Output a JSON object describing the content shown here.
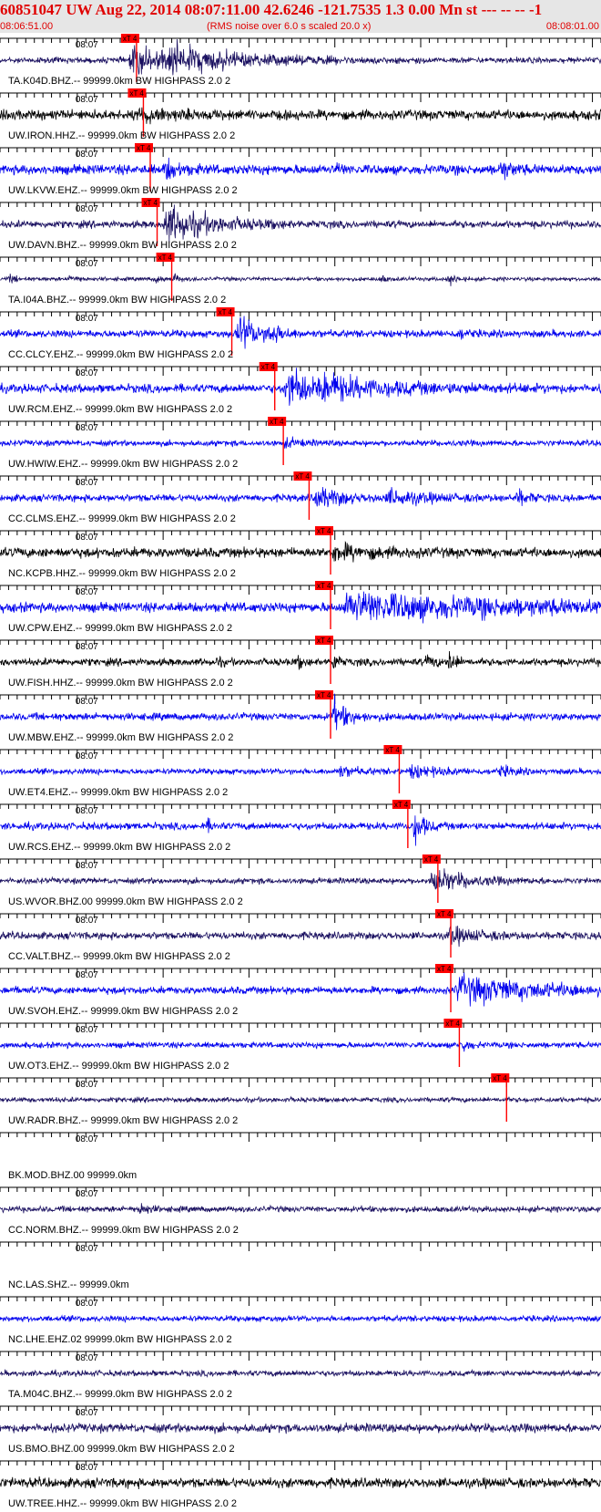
{
  "header": {
    "title": "60851047 UW Aug 22, 2014 08:07:11.00   42.6246 -121.7535  1.3 0.00 Mn st --- -- --  -1",
    "start_time": "08:06:51.00",
    "note": "(RMS noise over 6.0 s scaled 20.0 x)",
    "end_time": "08:08:01.00"
  },
  "chart_data": {
    "type": "line",
    "title": "60851047 UW Aug 22, 2014 08:07:11.00   42.6246 -121.7535  1.3 0.00 Mn st --- -- --  -1",
    "time_start": "08:06:51.00",
    "time_end": "08:08:01.00",
    "tick_label": "08:07",
    "pick_label": "xT 4",
    "colors": {
      "trace_blue": "#0000ee",
      "trace_navy": "#1a1060",
      "trace_black": "#000000",
      "pick": "#ff0000",
      "header_text": "#e00000",
      "header_bg": "#e6e6e6"
    },
    "series": [
      {
        "name": "TA.K04D.BHZ.-- 99999.0km BW  HIGHPASS  2.0  2",
        "color": "navy",
        "noise": 0.12,
        "pick_s": 15.9,
        "events": [
          [
            15.0,
            14.0,
            0.55,
            9.0
          ],
          [
            19.5,
            9.0,
            0.35,
            6.0
          ]
        ]
      },
      {
        "name": "UW.IRON.HHZ.-- 99999.0km BW  HIGHPASS  2.0  2",
        "color": "black",
        "noise": 0.2,
        "pick_s": 16.7,
        "events": [
          [
            16.0,
            6.0,
            0.3,
            3.0
          ]
        ]
      },
      {
        "name": "UW.LKVW.EHZ.-- 99999.0km BW  HIGHPASS  2.0  2",
        "color": "blue",
        "noise": 0.2,
        "pick_s": 17.5,
        "events": [
          [
            19.0,
            3.0,
            0.45,
            1.5
          ],
          [
            58.0,
            2.5,
            0.45,
            1.2
          ],
          [
            39.0,
            1.0,
            0.3,
            0.5
          ]
        ]
      },
      {
        "name": "UW.DAVN.BHZ.-- 99999.0km BW  HIGHPASS  2.0  2",
        "color": "navy",
        "noise": 0.15,
        "pick_s": 18.3,
        "events": [
          [
            19.0,
            8.0,
            0.8,
            5.0
          ]
        ]
      },
      {
        "name": "TA.I04A.BHZ.-- 99999.0km BW  HIGHPASS  2.0  2",
        "color": "navy",
        "noise": 0.08,
        "pick_s": 20.0,
        "events": [
          [
            1.0,
            1.2,
            0.3,
            0.6
          ],
          [
            8.0,
            1.2,
            0.3,
            0.6
          ],
          [
            18.0,
            1.0,
            0.3,
            0.5
          ],
          [
            20.0,
            1.2,
            0.3,
            0.6
          ],
          [
            44.0,
            1.0,
            0.3,
            0.5
          ],
          [
            52.0,
            1.5,
            0.35,
            0.8
          ]
        ]
      },
      {
        "name": "CC.CLCY.EHZ.-- 99999.0km BW  HIGHPASS  2.0  2",
        "color": "blue",
        "noise": 0.15,
        "pick_s": 27.0,
        "events": [
          [
            27.5,
            5.0,
            0.9,
            2.0
          ],
          [
            31.0,
            2.0,
            0.45,
            1.2
          ],
          [
            53.0,
            1.5,
            0.3,
            0.8
          ]
        ]
      },
      {
        "name": "UW.RCM.EHZ.-- 99999.0km BW  HIGHPASS  2.0  2",
        "color": "blue",
        "noise": 0.18,
        "pick_s": 32.0,
        "events": [
          [
            33.0,
            7.0,
            0.9,
            3.5
          ],
          [
            37.0,
            12.0,
            0.35,
            10.0
          ]
        ]
      },
      {
        "name": "UW.HWIW.EHZ.-- 99999.0km BW  HIGHPASS  2.0  2",
        "color": "blue",
        "noise": 0.12,
        "pick_s": 33.0,
        "events": [
          [
            33.0,
            3.0,
            0.2,
            1.5
          ]
        ]
      },
      {
        "name": "CC.CLMS.EHZ.-- 99999.0km BW  HIGHPASS  2.0  2",
        "color": "blue",
        "noise": 0.15,
        "pick_s": 36.0,
        "events": [
          [
            36.5,
            5.0,
            0.45,
            3.0
          ],
          [
            45.0,
            8.0,
            0.3,
            4.0
          ],
          [
            60.0,
            2.0,
            0.4,
            1.0
          ]
        ]
      },
      {
        "name": "NC.KCPB.HHZ.-- 99999.0km BW  HIGHPASS  2.0  2",
        "color": "black",
        "noise": 0.2,
        "pick_s": 38.5,
        "events": [
          [
            38.5,
            6.0,
            0.3,
            4.0
          ]
        ]
      },
      {
        "name": "UW.CPW.EHZ.-- 99999.0km BW  HIGHPASS  2.0  2",
        "color": "blue",
        "noise": 0.2,
        "pick_s": 38.5,
        "events": [
          [
            40.0,
            25.0,
            0.55,
            20.0
          ]
        ]
      },
      {
        "name": "UW.FISH.HHZ.-- 99999.0km BW  HIGHPASS  2.0  2",
        "color": "black",
        "noise": 0.15,
        "pick_s": 38.5,
        "events": [
          [
            38.5,
            1.5,
            0.6,
            0.6
          ],
          [
            25.0,
            1.0,
            0.3,
            0.5
          ],
          [
            34.5,
            1.0,
            0.4,
            0.5
          ],
          [
            49.5,
            1.5,
            0.35,
            0.8
          ],
          [
            52.0,
            1.5,
            0.9,
            0.6
          ]
        ]
      },
      {
        "name": "UW.MBW.EHZ.-- 99999.0km BW  HIGHPASS  2.0  2",
        "color": "blue",
        "noise": 0.15,
        "pick_s": 38.5,
        "events": [
          [
            38.5,
            3.0,
            0.8,
            1.5
          ]
        ]
      },
      {
        "name": "UW.ET4.EHZ.-- 99999.0km BW  HIGHPASS  2.0  2",
        "color": "blue",
        "noise": 0.12,
        "pick_s": 46.5,
        "events": [
          [
            39.0,
            4.0,
            0.25,
            2.0
          ],
          [
            47.5,
            6.0,
            0.25,
            3.0
          ],
          [
            58.0,
            3.0,
            0.2,
            1.5
          ]
        ]
      },
      {
        "name": "UW.RCS.EHZ.-- 99999.0km BW  HIGHPASS  2.0  2",
        "color": "blue",
        "noise": 0.15,
        "pick_s": 47.5,
        "events": [
          [
            48.0,
            2.0,
            0.95,
            1.0
          ],
          [
            24.0,
            1.0,
            0.4,
            0.5
          ]
        ]
      },
      {
        "name": "US.WVOR.BHZ.00 99999.0km BW  HIGHPASS  2.0  2",
        "color": "navy",
        "noise": 0.12,
        "pick_s": 51.0,
        "events": [
          [
            50.0,
            7.0,
            0.5,
            4.0
          ]
        ]
      },
      {
        "name": "CC.VALT.BHZ.-- 99999.0km BW  HIGHPASS  2.0  2",
        "color": "navy",
        "noise": 0.15,
        "pick_s": 52.5,
        "events": [
          [
            52.0,
            5.0,
            0.35,
            3.0
          ]
        ]
      },
      {
        "name": "UW.SVOH.EHZ.-- 99999.0km BW  HIGHPASS  2.0  2",
        "color": "blue",
        "noise": 0.15,
        "pick_s": 52.5,
        "events": [
          [
            53.0,
            14.0,
            0.55,
            10.0
          ],
          [
            1.0,
            1.0,
            0.2,
            0.5
          ]
        ]
      },
      {
        "name": "UW.OT3.EHZ.-- 99999.0km BW  HIGHPASS  2.0  2",
        "color": "blue",
        "noise": 0.12,
        "pick_s": 53.5,
        "events": [
          [
            53.5,
            1.5,
            0.35,
            0.8
          ]
        ]
      },
      {
        "name": "UW.RADR.BHZ.-- 99999.0km BW  HIGHPASS  2.0  2",
        "color": "navy",
        "noise": 0.1,
        "pick_s": 59.0,
        "events": []
      },
      {
        "name": "BK.MOD.BHZ.00 99999.0km",
        "color": "navy",
        "noise": 0,
        "pick_s": null,
        "events": []
      },
      {
        "name": "CC.NORM.BHZ.-- 99999.0km BW  HIGHPASS  2.0  2",
        "color": "navy",
        "noise": 0.12,
        "pick_s": null,
        "events": [
          [
            16.0,
            2.0,
            0.3,
            1.0
          ]
        ]
      },
      {
        "name": "NC.LAS.SHZ.-- 99999.0km",
        "color": "navy",
        "noise": 0,
        "pick_s": null,
        "events": []
      },
      {
        "name": "NC.LHE.EHZ.02 99999.0km BW  HIGHPASS  2.0  2",
        "color": "blue",
        "noise": 0.12,
        "pick_s": null,
        "events": []
      },
      {
        "name": "TA.M04C.BHZ.-- 99999.0km BW  HIGHPASS  2.0  2",
        "color": "navy",
        "noise": 0.12,
        "pick_s": null,
        "events": []
      },
      {
        "name": "US.BMO.BHZ.00 99999.0km BW  HIGHPASS  2.0  2",
        "color": "navy",
        "noise": 0.18,
        "pick_s": null,
        "events": []
      },
      {
        "name": "UW.TREE.HHZ.-- 99999.0km BW  HIGHPASS  2.0  2",
        "color": "black",
        "noise": 0.2,
        "pick_s": null,
        "events": []
      }
    ]
  }
}
